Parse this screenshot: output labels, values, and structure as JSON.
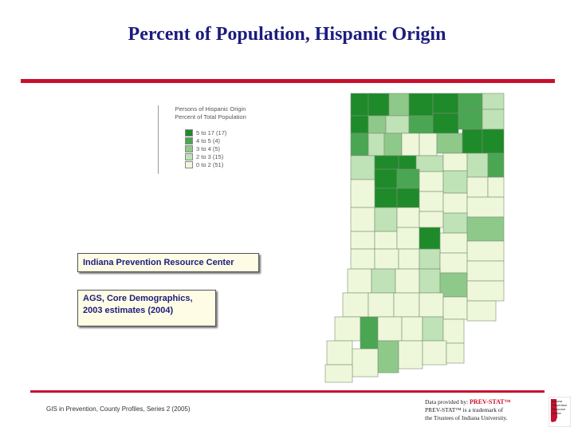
{
  "title": "Percent of Population, Hispanic Origin",
  "legend": {
    "title_line1": "Persons of Hispanic Origin",
    "title_line2": "Percent of Total Population",
    "classes": [
      {
        "label": "5 to 17  (17)",
        "color": "#1e8a2a"
      },
      {
        "label": "4 to 5  (4)",
        "color": "#4aa652"
      },
      {
        "label": "3 to 4  (5)",
        "color": "#8fc98a"
      },
      {
        "label": "2 to 3  (15)",
        "color": "#bfe2b6"
      },
      {
        "label": "0 to 2  (51)",
        "color": "#eef7da"
      }
    ]
  },
  "boxes": {
    "org": "Indiana Prevention Resource Center",
    "source_line1": "AGS, Core Demographics,",
    "source_line2": "2003 estimates (2004)"
  },
  "footer": "GIS in Prevention, County Profiles, Series 2 (2005)",
  "credit": {
    "line1_prefix": "Data provided by: ",
    "line1_brand": "PREV-STAT™",
    "line2": "PREV-STAT™ is a trademark of",
    "line3": "the Trustees of Indiana University."
  },
  "logo_text": "Indiana Prevention Resource Center",
  "colors": {
    "c5": "#1e8a2a",
    "c4": "#4aa652",
    "c3": "#8fc98a",
    "c2": "#bfe2b6",
    "c1": "#eef7da",
    "title": "#1c1c7e",
    "accent_red": "#c8102e"
  }
}
